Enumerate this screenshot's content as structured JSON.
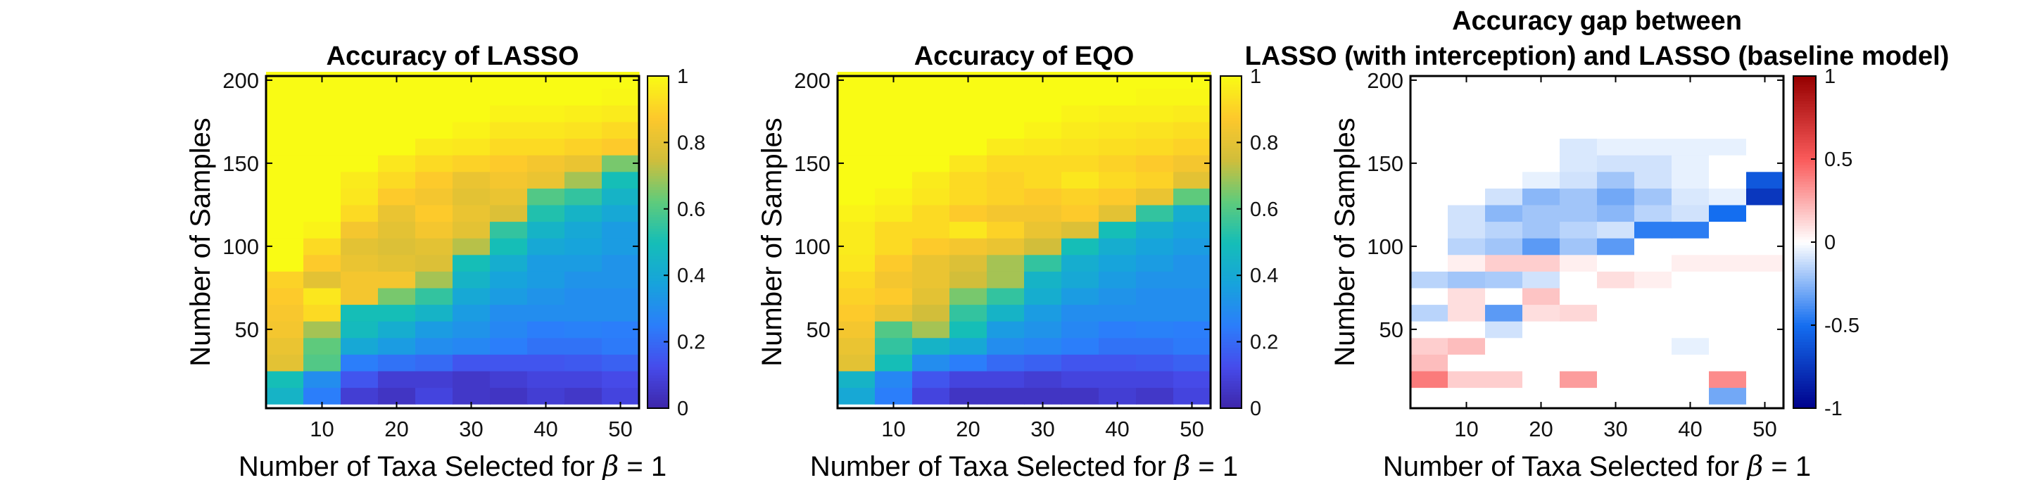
{
  "figure": {
    "xlabel_prefix": "Number of Taxa Selected for",
    "xlabel_symbol": "β",
    "xlabel_suffix": "= 1",
    "ylabel": "Number of Samples"
  },
  "chart_data": [
    {
      "type": "heatmap",
      "title": "Accuracy of LASSO",
      "title_line2": "",
      "xlabel": "Number of Taxa Selected for β = 1",
      "ylabel": "Number of Samples",
      "xlim": [
        2.5,
        52.5
      ],
      "ylim": [
        2.5,
        202.5
      ],
      "x_ticks": [
        10,
        20,
        30,
        40,
        50
      ],
      "y_ticks": [
        50,
        100,
        150,
        200
      ],
      "x_centers": [
        5,
        10,
        15,
        20,
        25,
        30,
        35,
        40,
        45,
        50
      ],
      "y_centers_bottom_to_top": [
        10,
        20,
        30,
        40,
        50,
        60,
        70,
        80,
        90,
        100,
        110,
        120,
        130,
        140,
        150,
        160,
        170,
        180,
        190,
        200
      ],
      "colormap": "parula",
      "clim": [
        0,
        1
      ],
      "colorbar_ticks": [
        0,
        0.2,
        0.4,
        0.6,
        0.8,
        1
      ],
      "colorbar_tick_labels": [
        "0",
        "0.2",
        "0.4",
        "0.6",
        "0.8",
        "1"
      ],
      "values_bottom_to_top": [
        [
          0.45,
          0.25,
          0.08,
          0.05,
          0.1,
          0.06,
          0.05,
          0.08,
          0.06,
          0.1
        ],
        [
          0.5,
          0.3,
          0.15,
          0.08,
          0.08,
          0.06,
          0.08,
          0.1,
          0.1,
          0.12
        ],
        [
          0.8,
          0.6,
          0.25,
          0.22,
          0.2,
          0.15,
          0.15,
          0.15,
          0.16,
          0.18
        ],
        [
          0.82,
          0.62,
          0.4,
          0.35,
          0.3,
          0.28,
          0.25,
          0.22,
          0.22,
          0.24
        ],
        [
          0.85,
          0.7,
          0.48,
          0.42,
          0.35,
          0.32,
          0.28,
          0.25,
          0.26,
          0.25
        ],
        [
          0.86,
          0.92,
          0.5,
          0.5,
          0.45,
          0.35,
          0.3,
          0.3,
          0.3,
          0.3
        ],
        [
          0.88,
          0.95,
          0.85,
          0.65,
          0.55,
          0.4,
          0.35,
          0.32,
          0.3,
          0.3
        ],
        [
          0.9,
          0.8,
          0.85,
          0.85,
          0.7,
          0.45,
          0.38,
          0.35,
          0.32,
          0.32
        ],
        [
          1.0,
          0.88,
          0.82,
          0.8,
          0.78,
          0.5,
          0.42,
          0.35,
          0.35,
          0.32
        ],
        [
          1.0,
          0.92,
          0.8,
          0.78,
          0.8,
          0.72,
          0.5,
          0.4,
          0.38,
          0.35
        ],
        [
          1.0,
          0.98,
          0.85,
          0.8,
          0.85,
          0.8,
          0.55,
          0.45,
          0.4,
          0.35
        ],
        [
          1.0,
          1.0,
          0.92,
          0.82,
          0.88,
          0.82,
          0.78,
          0.52,
          0.45,
          0.4
        ],
        [
          1.0,
          1.0,
          0.95,
          0.88,
          0.85,
          0.8,
          0.82,
          0.6,
          0.55,
          0.45
        ],
        [
          1.0,
          1.0,
          0.96,
          0.92,
          0.88,
          0.82,
          0.85,
          0.82,
          0.7,
          0.5
        ],
        [
          1.0,
          1.0,
          1.0,
          0.95,
          0.92,
          0.9,
          0.88,
          0.85,
          0.82,
          0.65
        ],
        [
          1.0,
          1.0,
          1.0,
          1.0,
          0.96,
          0.95,
          0.92,
          0.92,
          0.9,
          0.88
        ],
        [
          1.0,
          1.0,
          1.0,
          1.0,
          1.0,
          0.98,
          0.95,
          0.95,
          0.94,
          0.92
        ],
        [
          1.0,
          1.0,
          1.0,
          1.0,
          1.0,
          1.0,
          0.98,
          0.98,
          0.97,
          0.96
        ],
        [
          1.0,
          1.0,
          1.0,
          1.0,
          1.0,
          1.0,
          1.0,
          1.0,
          1.0,
          0.99
        ],
        [
          1.0,
          1.0,
          1.0,
          1.0,
          1.0,
          1.0,
          1.0,
          1.0,
          1.0,
          1.0
        ]
      ]
    },
    {
      "type": "heatmap",
      "title": "Accuracy of EQO",
      "title_line2": "",
      "xlabel": "Number of Taxa Selected for β = 1",
      "ylabel": "Number of Samples",
      "xlim": [
        2.5,
        52.5
      ],
      "ylim": [
        2.5,
        202.5
      ],
      "x_ticks": [
        10,
        20,
        30,
        40,
        50
      ],
      "y_ticks": [
        50,
        100,
        150,
        200
      ],
      "x_centers": [
        5,
        10,
        15,
        20,
        25,
        30,
        35,
        40,
        45,
        50
      ],
      "y_centers_bottom_to_top": [
        10,
        20,
        30,
        40,
        50,
        60,
        70,
        80,
        90,
        100,
        110,
        120,
        130,
        140,
        150,
        160,
        170,
        180,
        190,
        200
      ],
      "colormap": "parula",
      "clim": [
        0,
        1
      ],
      "colorbar_ticks": [
        0,
        0.2,
        0.4,
        0.6,
        0.8,
        1
      ],
      "colorbar_tick_labels": [
        "0",
        "0.2",
        "0.4",
        "0.6",
        "0.8",
        "1"
      ],
      "values_bottom_to_top": [
        [
          0.4,
          0.25,
          0.1,
          0.05,
          0.05,
          0.05,
          0.05,
          0.08,
          0.06,
          0.1
        ],
        [
          0.45,
          0.28,
          0.15,
          0.1,
          0.1,
          0.08,
          0.1,
          0.1,
          0.1,
          0.12
        ],
        [
          0.8,
          0.5,
          0.3,
          0.25,
          0.2,
          0.18,
          0.15,
          0.15,
          0.16,
          0.18
        ],
        [
          0.82,
          0.55,
          0.45,
          0.4,
          0.3,
          0.28,
          0.25,
          0.22,
          0.22,
          0.24
        ],
        [
          0.85,
          0.6,
          0.7,
          0.5,
          0.35,
          0.32,
          0.28,
          0.25,
          0.26,
          0.25
        ],
        [
          0.88,
          0.82,
          0.75,
          0.55,
          0.45,
          0.35,
          0.3,
          0.3,
          0.3,
          0.3
        ],
        [
          0.9,
          0.88,
          0.8,
          0.65,
          0.55,
          0.42,
          0.35,
          0.32,
          0.3,
          0.3
        ],
        [
          0.92,
          0.85,
          0.82,
          0.75,
          0.7,
          0.45,
          0.4,
          0.35,
          0.32,
          0.32
        ],
        [
          0.95,
          0.88,
          0.82,
          0.78,
          0.7,
          0.55,
          0.42,
          0.38,
          0.35,
          0.32
        ],
        [
          0.96,
          0.92,
          0.88,
          0.85,
          0.82,
          0.75,
          0.5,
          0.42,
          0.38,
          0.35
        ],
        [
          0.96,
          0.92,
          0.92,
          0.95,
          0.9,
          0.82,
          0.78,
          0.5,
          0.42,
          0.38
        ],
        [
          0.98,
          0.96,
          0.92,
          0.88,
          0.85,
          0.85,
          0.88,
          0.8,
          0.55,
          0.42
        ],
        [
          1.0,
          0.98,
          0.95,
          0.92,
          0.9,
          0.88,
          0.9,
          0.88,
          0.82,
          0.62
        ],
        [
          1.0,
          1.0,
          0.96,
          0.92,
          0.9,
          0.92,
          0.95,
          0.92,
          0.9,
          0.8
        ],
        [
          1.0,
          1.0,
          1.0,
          0.95,
          0.92,
          0.92,
          0.92,
          0.9,
          0.88,
          0.85
        ],
        [
          1.0,
          1.0,
          1.0,
          1.0,
          0.96,
          0.95,
          0.94,
          0.93,
          0.92,
          0.9
        ],
        [
          1.0,
          1.0,
          1.0,
          1.0,
          1.0,
          0.98,
          0.96,
          0.95,
          0.94,
          0.93
        ],
        [
          1.0,
          1.0,
          1.0,
          1.0,
          1.0,
          1.0,
          0.98,
          0.97,
          0.97,
          0.96
        ],
        [
          1.0,
          1.0,
          1.0,
          1.0,
          1.0,
          1.0,
          1.0,
          1.0,
          0.99,
          0.99
        ],
        [
          1.0,
          1.0,
          1.0,
          1.0,
          1.0,
          1.0,
          1.0,
          1.0,
          1.0,
          1.0
        ]
      ]
    },
    {
      "type": "heatmap",
      "title": "Accuracy gap between",
      "title_line2": "LASSO (with interception) and LASSO (baseline model)",
      "xlabel": "Number of Taxa Selected for β = 1",
      "ylabel": "Number of Samples",
      "xlim": [
        2.5,
        52.5
      ],
      "ylim": [
        2.5,
        202.5
      ],
      "x_ticks": [
        10,
        20,
        30,
        40,
        50
      ],
      "y_ticks": [
        50,
        100,
        150,
        200
      ],
      "x_centers": [
        5,
        10,
        15,
        20,
        25,
        30,
        35,
        40,
        45,
        50
      ],
      "y_centers_bottom_to_top": [
        10,
        20,
        30,
        40,
        50,
        60,
        70,
        80,
        90,
        100,
        110,
        120,
        130,
        140,
        150,
        160,
        170,
        180,
        190,
        200
      ],
      "colormap": "red-white-blue diverging",
      "clim": [
        -1,
        1
      ],
      "colorbar_ticks": [
        -1,
        -0.5,
        0,
        0.5,
        1
      ],
      "colorbar_tick_labels": [
        "-1",
        "-0.5",
        "0",
        "0.5",
        "1"
      ],
      "values_bottom_to_top": [
        [
          0,
          0,
          0,
          0,
          0,
          0,
          0,
          0,
          -0.3,
          0
        ],
        [
          0.4,
          0.15,
          0.15,
          0,
          0.3,
          0,
          0,
          0,
          0.35,
          0
        ],
        [
          0.2,
          0,
          0,
          0,
          0,
          0,
          0,
          0,
          0,
          0
        ],
        [
          0.15,
          0.2,
          0,
          0,
          0,
          0,
          0,
          -0.05,
          0,
          0
        ],
        [
          0,
          0,
          -0.1,
          0,
          0,
          0,
          0,
          0,
          0,
          0
        ],
        [
          -0.15,
          0.1,
          -0.35,
          0.1,
          0.12,
          0,
          0,
          0,
          0,
          0
        ],
        [
          0,
          0.1,
          0,
          0.18,
          0,
          0,
          0,
          0,
          0,
          0
        ],
        [
          -0.15,
          -0.2,
          -0.18,
          -0.1,
          0,
          0.1,
          0.05,
          0,
          0,
          0
        ],
        [
          0,
          0.05,
          0.15,
          0.15,
          0.05,
          0,
          0,
          0.05,
          0.05,
          0.05
        ],
        [
          0,
          -0.15,
          -0.2,
          -0.35,
          -0.2,
          -0.35,
          0,
          0,
          0,
          0
        ],
        [
          0,
          -0.1,
          -0.15,
          -0.2,
          -0.15,
          -0.1,
          -0.45,
          -0.45,
          0,
          0
        ],
        [
          0,
          -0.1,
          -0.25,
          -0.2,
          -0.2,
          -0.25,
          -0.15,
          -0.1,
          -0.5,
          0
        ],
        [
          0,
          0,
          -0.1,
          -0.25,
          -0.2,
          -0.3,
          -0.2,
          -0.08,
          -0.05,
          -0.75
        ],
        [
          0,
          0,
          0,
          -0.05,
          -0.1,
          -0.2,
          -0.1,
          -0.05,
          0,
          -0.6
        ],
        [
          0,
          0,
          0,
          0,
          -0.08,
          -0.1,
          -0.1,
          -0.05,
          0,
          0
        ],
        [
          0,
          0,
          0,
          0,
          -0.08,
          -0.05,
          -0.05,
          -0.05,
          -0.05,
          0
        ],
        [
          0,
          0,
          0,
          0,
          0,
          0,
          0,
          0,
          0,
          0
        ],
        [
          0,
          0,
          0,
          0,
          0,
          0,
          0,
          0,
          0,
          0
        ],
        [
          0,
          0,
          0,
          0,
          0,
          0,
          0,
          0,
          0,
          0
        ],
        [
          0,
          0,
          0,
          0,
          0,
          0,
          0,
          0,
          0,
          0
        ]
      ]
    }
  ]
}
